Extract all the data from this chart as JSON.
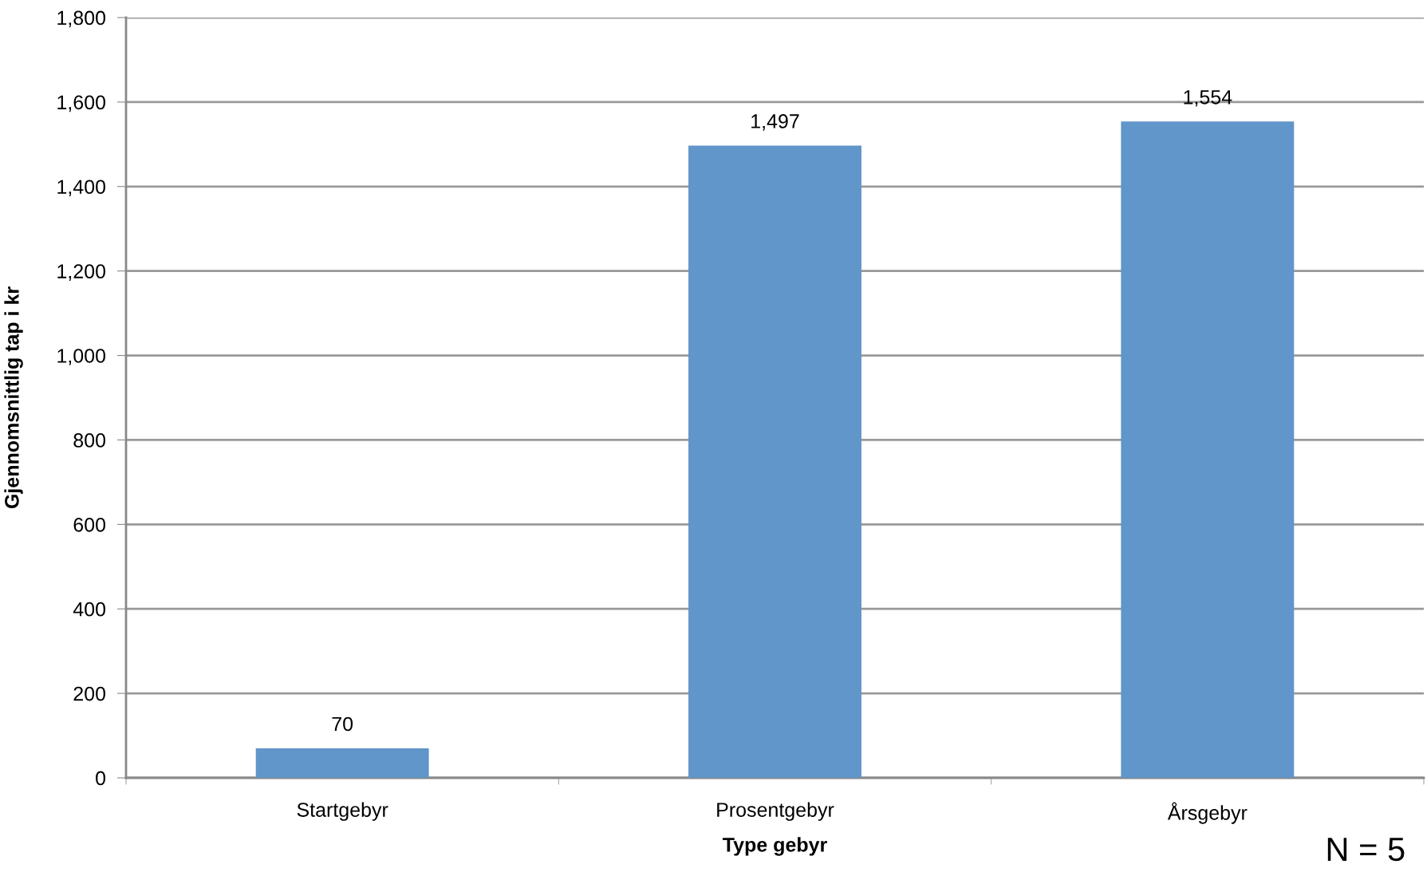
{
  "chart_data": {
    "type": "bar",
    "xlabel": "Type gebyr",
    "ylabel": "Gjennomsnittlig tap i kr",
    "categories": [
      "Startgebyr",
      "Prosentgebyr",
      "Årsgebyr"
    ],
    "values": [
      70,
      1497,
      1554
    ],
    "color": "#6096c9",
    "value_labels": [
      "70",
      "1,497",
      "1,554"
    ],
    "ylim": [
      0,
      1800
    ],
    "yticks": [
      0,
      200,
      400,
      600,
      800,
      {
        "value": 1000,
        "label": "1,000"
      },
      {
        "value": 1200,
        "label": "1,200"
      },
      {
        "value": 1400,
        "label": "1,400"
      },
      {
        "value": 1600,
        "label": "1,600"
      },
      {
        "value": 1800,
        "label": "1,800"
      }
    ],
    "grid": "y",
    "annotations": [
      "N = 5"
    ]
  }
}
